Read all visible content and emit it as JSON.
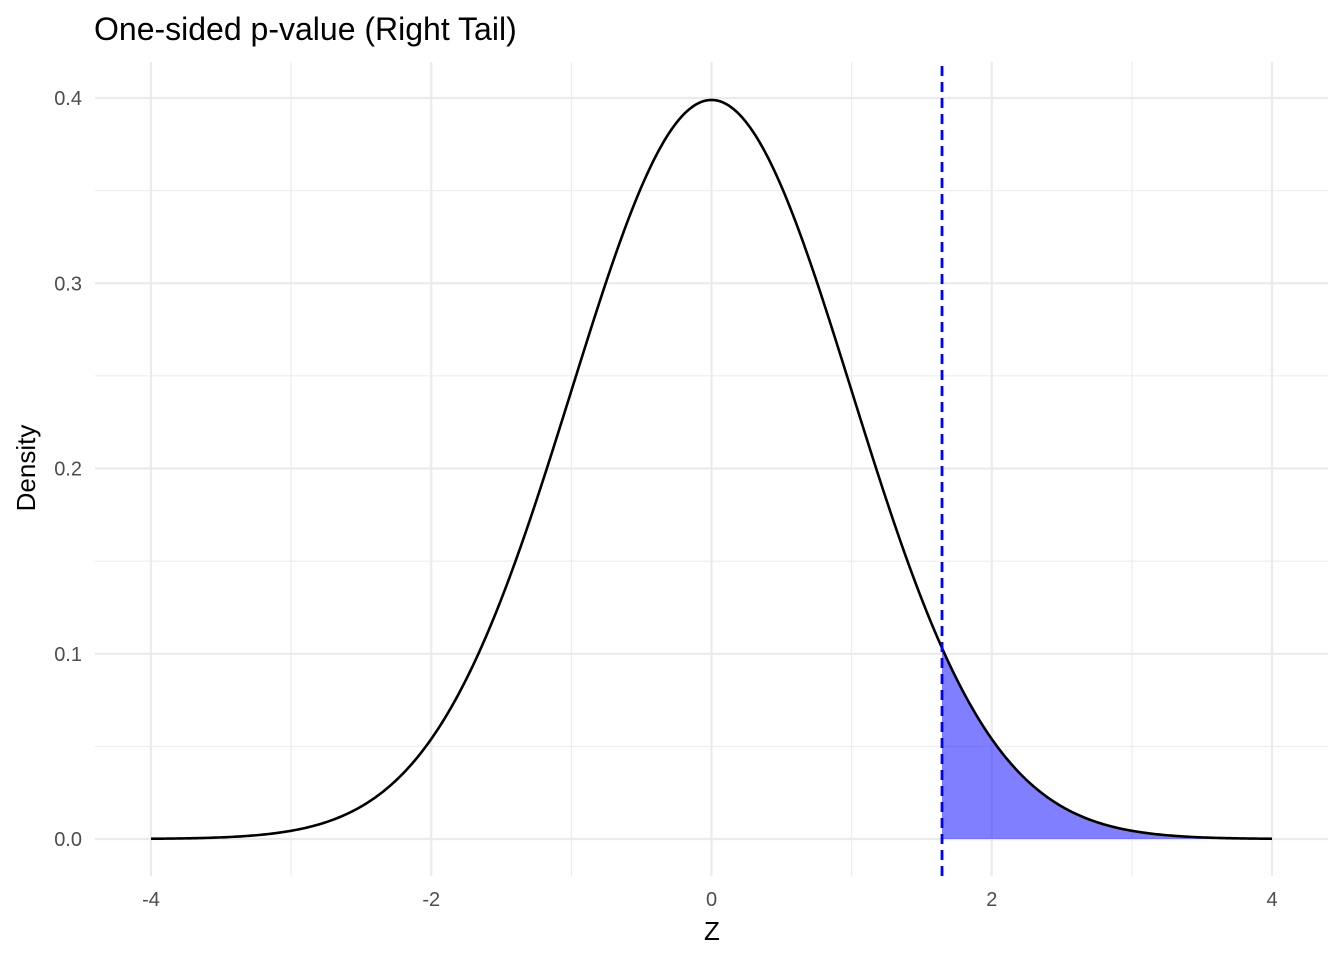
{
  "chart_data": {
    "type": "area",
    "title": "One-sided p-value (Right Tail)",
    "xlabel": "Z",
    "ylabel": "Density",
    "xlim": [
      -4,
      4
    ],
    "ylim": [
      0,
      0.4
    ],
    "x_ticks": [
      -4,
      -2,
      0,
      2,
      4
    ],
    "y_ticks": [
      0.0,
      0.1,
      0.2,
      0.3,
      0.4
    ],
    "x_tick_labels": [
      "-4",
      "-2",
      "0",
      "2",
      "4"
    ],
    "y_tick_labels": [
      "0.0",
      "0.1",
      "0.2",
      "0.3",
      "0.4"
    ],
    "grid": true,
    "curve": {
      "distribution": "standard normal density",
      "x": [
        -4,
        -3.5,
        -3,
        -2.5,
        -2,
        -1.5,
        -1,
        -0.5,
        0,
        0.5,
        1,
        1.5,
        2,
        2.5,
        3,
        3.5,
        4
      ],
      "y": [
        0.0001,
        0.0009,
        0.0044,
        0.0175,
        0.054,
        0.1295,
        0.242,
        0.3521,
        0.3989,
        0.3521,
        0.242,
        0.1295,
        0.054,
        0.0175,
        0.0044,
        0.0009,
        0.0001
      ],
      "color": "#000000"
    },
    "shaded_region": {
      "from": 1.645,
      "to": 4,
      "color": "#0000ff",
      "opacity": 0.5
    },
    "critical_line": {
      "x": 1.645,
      "color": "#0000ff",
      "style": "dashed"
    }
  }
}
